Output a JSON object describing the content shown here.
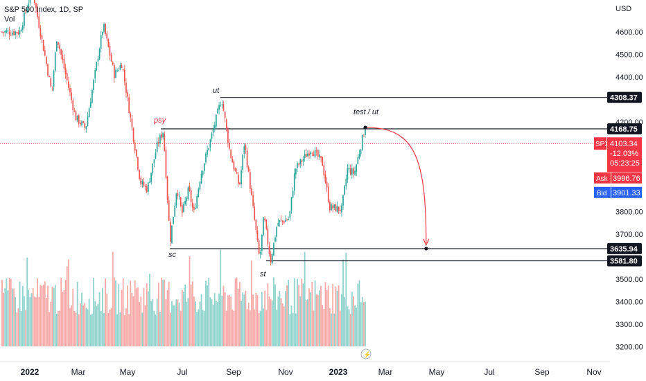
{
  "header": {
    "title": "S&P 500 Index, 1D, SP",
    "vol_label": "Vol"
  },
  "axis": {
    "currency": "USD",
    "y_ticks": [
      "4600.00",
      "4500.00",
      "4400.00",
      "4200.00",
      "3800.00",
      "3700.00",
      "3500.00",
      "3400.00",
      "3300.00",
      "3200.00"
    ],
    "x_ticks": [
      "2022",
      "Mar",
      "May",
      "Jul",
      "Sep",
      "Nov",
      "2023",
      "Mar",
      "May",
      "Jul",
      "Sep",
      "Nov"
    ]
  },
  "price_tags": {
    "spx_symbol": "SPX",
    "spx_price": "4103.34",
    "spx_change": "-12.03%",
    "spx_countdown": "05:23:25",
    "ask_label": "Ask",
    "ask_price": "3996.76",
    "bid_label": "Bid",
    "bid_price": "3901.33"
  },
  "levels": [
    {
      "label": "4308.37",
      "value": 4308.37
    },
    {
      "label": "4168.75",
      "value": 4168.75
    },
    {
      "label": "3635.94",
      "value": 3635.94
    },
    {
      "label": "3581.80",
      "value": 3581.8
    }
  ],
  "annotations": {
    "psy": "psy",
    "ut": "ut",
    "test_ut": "test / ut",
    "sc": "sc",
    "st": "st"
  },
  "colors": {
    "up": "#26a69a",
    "down": "#ef5350",
    "vol_up": "#8fd3cc",
    "vol_down": "#f7a9a7",
    "level_line": "#131722",
    "current_line": "#f23645",
    "bid": "#2962ff"
  },
  "chart_data": {
    "type": "candlestick",
    "y_unit": "USD",
    "x_range": [
      "2022-01",
      "2023-11"
    ],
    "ylim": [
      3150,
      4780
    ],
    "anchors": [
      [
        "2021-12-20",
        4600
      ],
      [
        "2022-01-04",
        4790
      ],
      [
        "2022-01-10",
        4670
      ],
      [
        "2022-01-27",
        4330
      ],
      [
        "2022-02-02",
        4580
      ],
      [
        "2022-02-24",
        4220
      ],
      [
        "2022-03-08",
        4170
      ],
      [
        "2022-03-29",
        4630
      ],
      [
        "2022-04-11",
        4410
      ],
      [
        "2022-04-20",
        4460
      ],
      [
        "2022-05-12",
        3930
      ],
      [
        "2022-05-20",
        3900
      ],
      [
        "2022-06-01",
        4100
      ],
      [
        "2022-06-08",
        4160
      ],
      [
        "2022-06-16",
        3670
      ],
      [
        "2022-06-24",
        3910
      ],
      [
        "2022-06-30",
        3790
      ],
      [
        "2022-07-08",
        3900
      ],
      [
        "2022-07-14",
        3790
      ],
      [
        "2022-07-22",
        3960
      ],
      [
        "2022-08-05",
        4150
      ],
      [
        "2022-08-16",
        4305
      ],
      [
        "2022-08-26",
        4060
      ],
      [
        "2022-09-06",
        3910
      ],
      [
        "2022-09-12",
        4110
      ],
      [
        "2022-09-30",
        3585
      ],
      [
        "2022-10-05",
        3780
      ],
      [
        "2022-10-13",
        3580
      ],
      [
        "2022-10-21",
        3750
      ],
      [
        "2022-11-04",
        3770
      ],
      [
        "2022-11-11",
        3990
      ],
      [
        "2022-11-30",
        4080
      ],
      [
        "2022-12-13",
        4020
      ],
      [
        "2022-12-22",
        3820
      ],
      [
        "2023-01-05",
        3810
      ],
      [
        "2023-01-12",
        3990
      ],
      [
        "2023-01-20",
        3970
      ],
      [
        "2023-02-02",
        4180
      ],
      [
        "2023-02-08",
        4120
      ],
      [
        "2023-02-09",
        4103
      ]
    ],
    "volume": "relative daily volume bars, mostly light (approx. 3180–3440 scale band)",
    "projection": {
      "from": [
        "2023-02-02",
        4175
      ],
      "to": [
        "2023-04-15",
        3636
      ]
    }
  }
}
